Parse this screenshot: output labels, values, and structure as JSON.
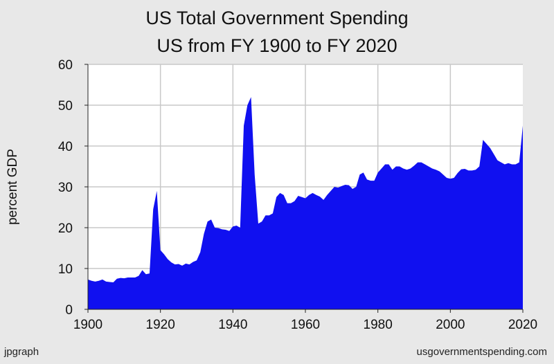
{
  "chart_data": {
    "type": "area",
    "title": "US Total Government Spending",
    "subtitle": "US from FY 1900 to FY 2020",
    "xlabel": "",
    "ylabel": "percent GDP",
    "xlim": [
      1900,
      2020
    ],
    "ylim": [
      0,
      60
    ],
    "x_ticks": [
      1900,
      1920,
      1940,
      1960,
      1980,
      2000,
      2020
    ],
    "y_ticks": [
      0,
      10,
      20,
      30,
      40,
      50,
      60
    ],
    "grid": true,
    "fill_color": "#1010f0",
    "plot_background": "#ffffff",
    "series": [
      {
        "x": [
          1900,
          1901,
          1902,
          1903,
          1904,
          1905,
          1906,
          1907,
          1908,
          1909,
          1910,
          1911,
          1912,
          1913,
          1914,
          1915,
          1916,
          1917,
          1918,
          1919,
          1920,
          1921,
          1922,
          1923,
          1924,
          1925,
          1926,
          1927,
          1928,
          1929,
          1930,
          1931,
          1932,
          1933,
          1934,
          1935,
          1936,
          1937,
          1938,
          1939,
          1940,
          1941,
          1942,
          1943,
          1944,
          1945,
          1946,
          1947,
          1948,
          1949,
          1950,
          1951,
          1952,
          1953,
          1954,
          1955,
          1956,
          1957,
          1958,
          1959,
          1960,
          1961,
          1962,
          1963,
          1964,
          1965,
          1966,
          1967,
          1968,
          1969,
          1970,
          1971,
          1972,
          1973,
          1974,
          1975,
          1976,
          1977,
          1978,
          1979,
          1980,
          1981,
          1982,
          1983,
          1984,
          1985,
          1986,
          1987,
          1988,
          1989,
          1990,
          1991,
          1992,
          1993,
          1994,
          1995,
          1996,
          1997,
          1998,
          1999,
          2000,
          2001,
          2002,
          2003,
          2004,
          2005,
          2006,
          2007,
          2008,
          2009,
          2010,
          2011,
          2012,
          2013,
          2014,
          2015,
          2016,
          2017,
          2018,
          2019,
          2020
        ],
        "values": [
          7.3,
          7.0,
          6.8,
          7.0,
          7.3,
          6.8,
          6.7,
          6.6,
          7.5,
          7.7,
          7.6,
          7.8,
          7.8,
          7.8,
          8.2,
          9.6,
          8.6,
          8.8,
          24.5,
          29.0,
          14.5,
          13.5,
          12.3,
          11.5,
          11.0,
          11.1,
          10.7,
          11.2,
          11.0,
          11.6,
          12.0,
          14.0,
          18.5,
          21.5,
          22.0,
          20.0,
          19.9,
          19.6,
          19.5,
          19.2,
          20.3,
          20.5,
          20.0,
          45.0,
          50.0,
          52.0,
          33.0,
          21.0,
          21.5,
          23.0,
          23.0,
          23.5,
          27.5,
          28.5,
          28.0,
          26.0,
          26.0,
          26.5,
          27.8,
          27.5,
          27.2,
          28.0,
          28.5,
          28.0,
          27.6,
          26.8,
          28.0,
          29.0,
          30.0,
          29.8,
          30.2,
          30.5,
          30.4,
          29.5,
          30.0,
          33.0,
          33.5,
          31.8,
          31.5,
          31.5,
          33.5,
          34.5,
          35.5,
          35.5,
          34.2,
          35.0,
          35.0,
          34.5,
          34.2,
          34.5,
          35.2,
          36.0,
          36.0,
          35.5,
          35.0,
          34.5,
          34.2,
          33.8,
          33.0,
          32.2,
          32.0,
          32.2,
          33.4,
          34.3,
          34.4,
          34.0,
          34.0,
          34.2,
          35.0,
          41.5,
          40.5,
          39.5,
          38.0,
          36.5,
          36.0,
          35.5,
          35.8,
          35.5,
          35.5,
          36.0,
          45.0
        ]
      }
    ]
  },
  "footer": {
    "left": "jpgraph",
    "right": "usgovernmentspending.com"
  }
}
